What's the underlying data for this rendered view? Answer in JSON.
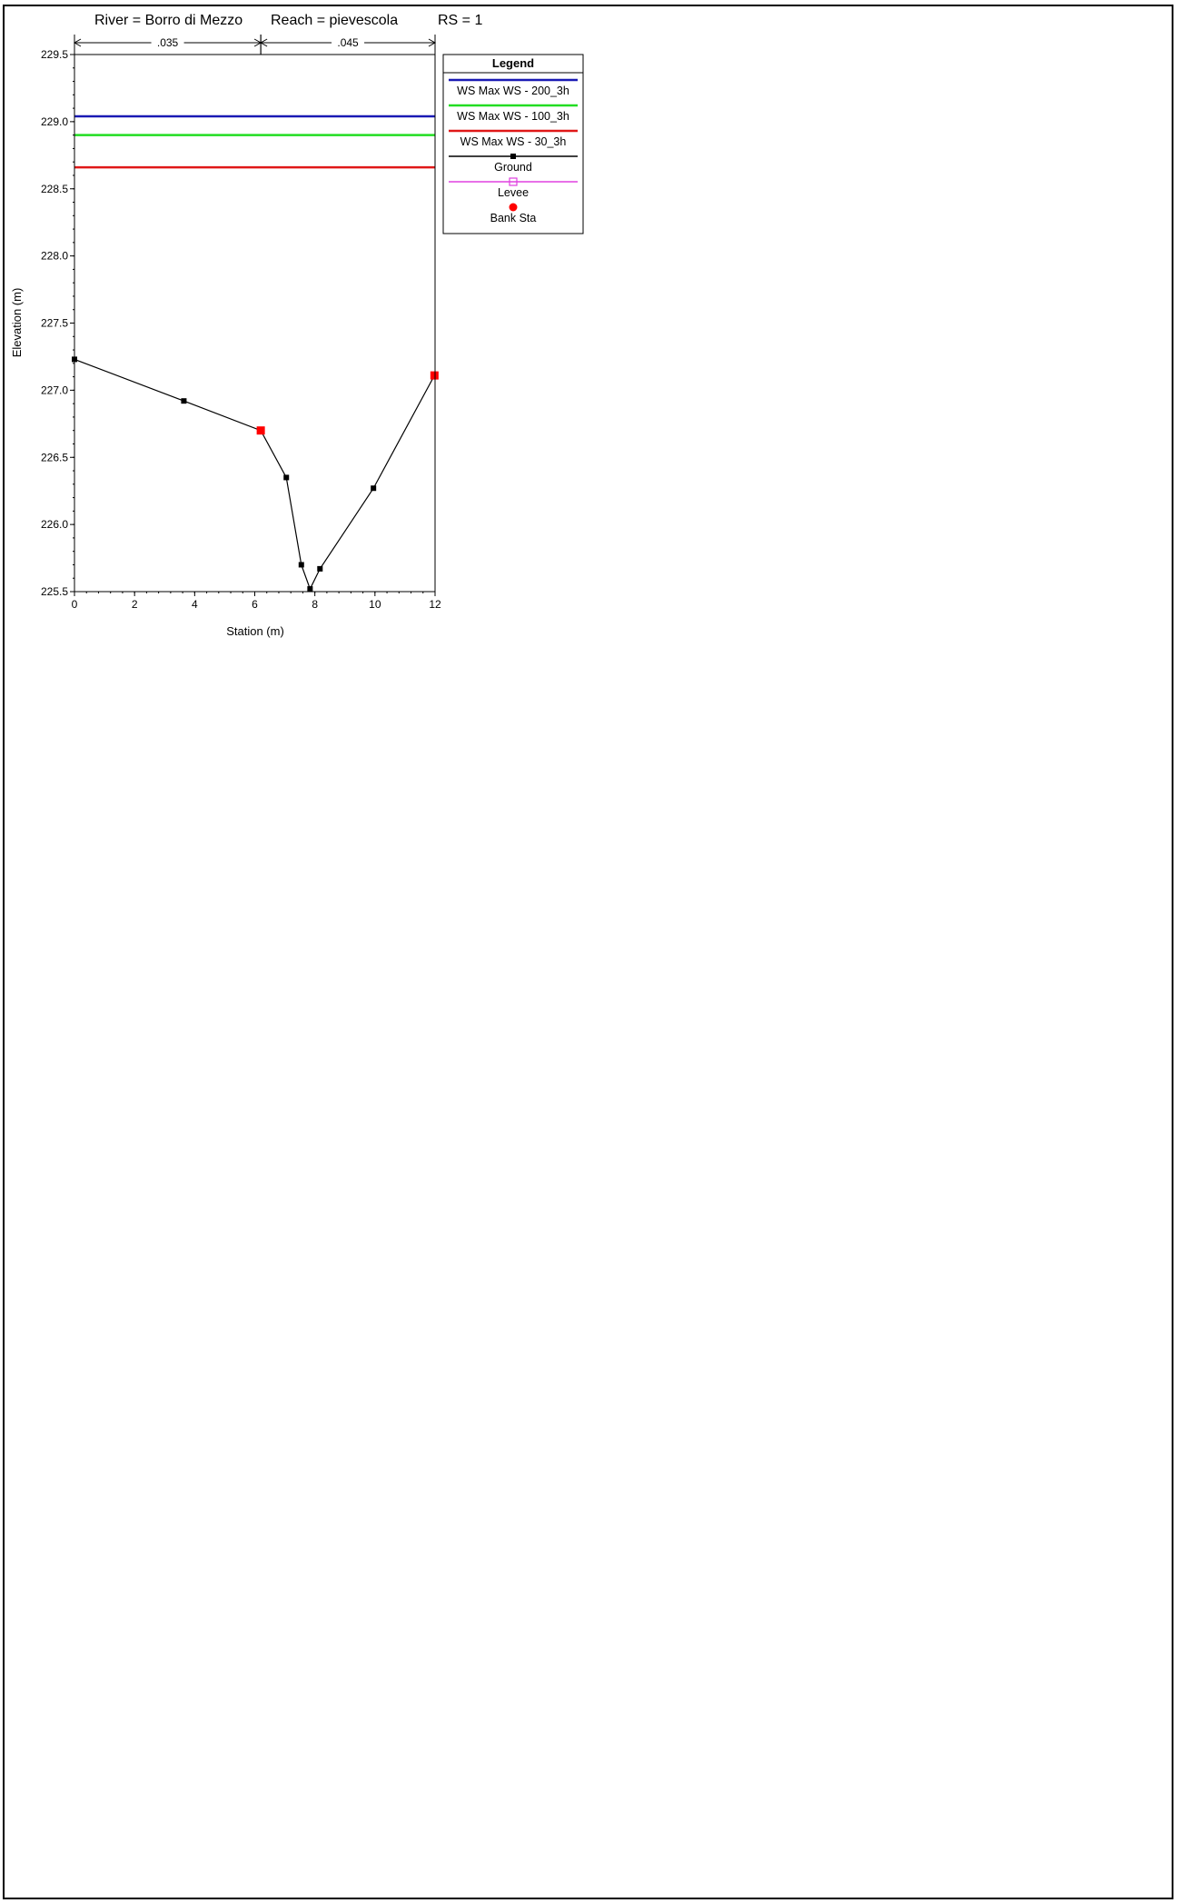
{
  "title_line": {
    "river": "River = Borro di Mezzo",
    "reach": "Reach = pievescola",
    "rs": "RS = 1"
  },
  "manning": [
    {
      "label": ".035",
      "from": 0,
      "to": 6.2
    },
    {
      "label": ".045",
      "from": 6.2,
      "to": 12
    }
  ],
  "legend": {
    "title": "Legend",
    "items": [
      {
        "label": "WS Max WS - 200_3h",
        "color": "#1a1ab4",
        "kind": "line"
      },
      {
        "label": "WS Max WS - 100_3h",
        "color": "#22dd22",
        "kind": "line"
      },
      {
        "label": "WS Max WS - 30_3h",
        "color": "#e01818",
        "kind": "line"
      },
      {
        "label": "Ground",
        "color": "#000000",
        "kind": "line-square"
      },
      {
        "label": "Levee",
        "color": "#e040e0",
        "kind": "line-open-square"
      },
      {
        "label": "Bank Sta",
        "color": "#ff0000",
        "kind": "dot"
      }
    ]
  },
  "chart_data": {
    "type": "line",
    "title": "River = Borro di Mezzo   Reach = pievescola      RS = 1",
    "xlabel": "Station (m)",
    "ylabel": "Elevation (m)",
    "xlim": [
      0,
      12
    ],
    "ylim": [
      225.5,
      229.5
    ],
    "xticks": [
      0,
      2,
      4,
      6,
      8,
      10,
      12
    ],
    "yticks": [
      225.5,
      226.0,
      226.5,
      227.0,
      227.5,
      228.0,
      228.5,
      229.0,
      229.5
    ],
    "ytick_labels": [
      "225.5",
      "226.0",
      "226.5",
      "227.0",
      "227.5",
      "228.0",
      "228.5",
      "229.0",
      "229.5"
    ],
    "ws_levels": [
      {
        "name": "WS Max WS - 200_3h",
        "elevation": 229.04,
        "color": "#1a1ab4"
      },
      {
        "name": "WS Max WS - 100_3h",
        "elevation": 228.9,
        "color": "#22dd22"
      },
      {
        "name": "WS Max WS - 30_3h",
        "elevation": 228.66,
        "color": "#e01818"
      }
    ],
    "ground": {
      "name": "Ground",
      "x": [
        0,
        3.64,
        6.2,
        7.05,
        7.55,
        7.84,
        8.17,
        9.95,
        11.98
      ],
      "y": [
        227.23,
        226.92,
        226.7,
        226.35,
        225.7,
        225.52,
        225.67,
        226.27,
        227.11
      ]
    },
    "bank_sta": {
      "name": "Bank Sta",
      "x": [
        6.2,
        11.98
      ],
      "y": [
        226.7,
        227.11
      ]
    },
    "legend_position": "top-right",
    "grid": false
  }
}
